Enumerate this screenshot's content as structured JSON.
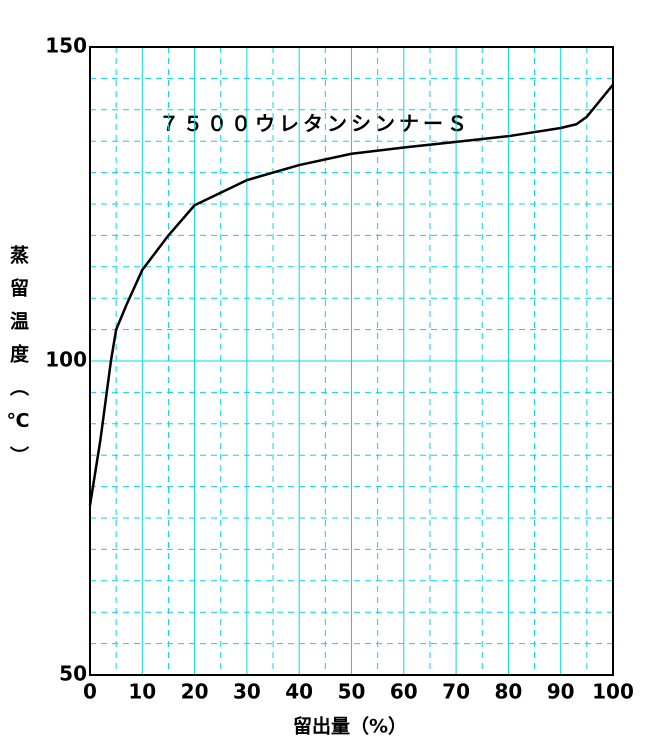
{
  "chart_data": {
    "type": "line",
    "annotation": "７５００ウレタンシンナーＳ",
    "x_label": "留出量（%）",
    "y_label": "蒸留温度（℃）",
    "x": [
      0,
      2,
      4,
      5,
      7,
      10,
      15,
      20,
      30,
      40,
      50,
      60,
      70,
      80,
      90,
      93,
      95,
      100
    ],
    "series": [
      {
        "color": "#000000",
        "values": [
          77,
          87.5,
          100,
          105,
          109,
          114.5,
          120,
          124.8,
          128.8,
          131.2,
          133,
          134,
          134.9,
          135.8,
          137.1,
          137.7,
          138.9,
          144
        ]
      }
    ],
    "xlim": [
      0,
      100
    ],
    "ylim": [
      50,
      150
    ],
    "xticks": [
      0,
      10,
      20,
      30,
      40,
      50,
      60,
      70,
      80,
      90,
      100
    ],
    "yticks": [
      50,
      100,
      150
    ],
    "x_minor_ticks": [
      5,
      15,
      25,
      35,
      45,
      55,
      65,
      75,
      85,
      95
    ],
    "y_minor_ticks": [
      55,
      60,
      65,
      70,
      75,
      80,
      85,
      90,
      95,
      105,
      110,
      115,
      120,
      125,
      130,
      135,
      140,
      145
    ],
    "grid": true,
    "grid_color": "#00d8e8"
  }
}
